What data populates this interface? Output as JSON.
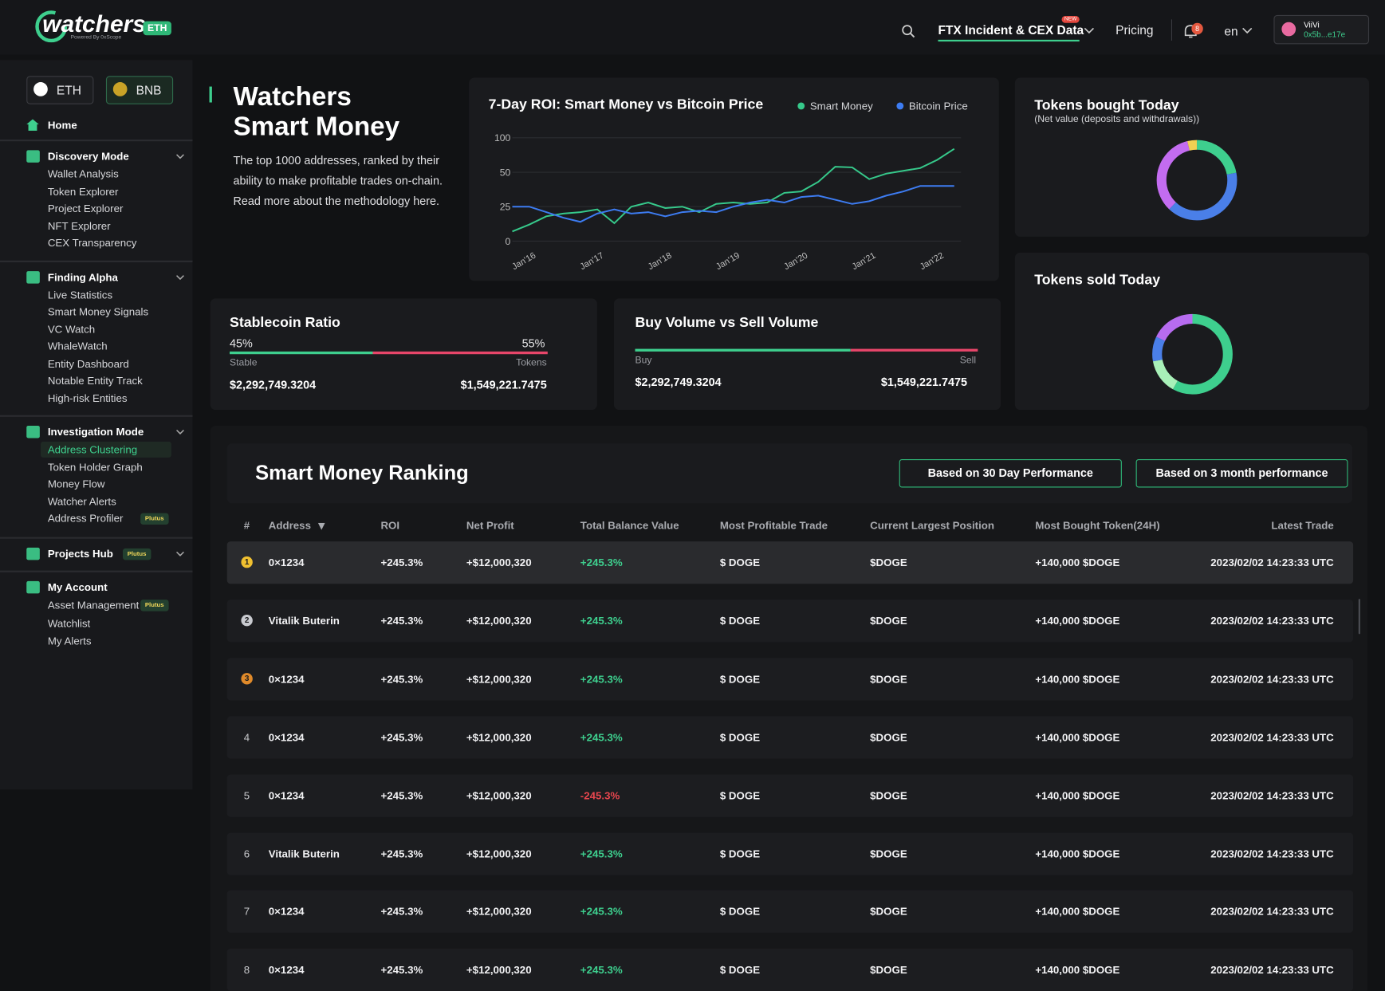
{
  "header": {
    "logo": "watchers",
    "logo_badge": "ETH",
    "tagline": "Powered By 0xScope",
    "nav": [
      {
        "label": "FTX Incident & CEX Data",
        "badge": "NEW"
      },
      {
        "label": "Pricing"
      }
    ],
    "notifications": "8",
    "language": "en",
    "user": {
      "name": "ViiVi",
      "address": "0x5b...e17e"
    }
  },
  "sidebar": {
    "chains": [
      "ETH",
      "BNB"
    ],
    "home": "Home",
    "sections": [
      {
        "title": "Discovery Mode",
        "items": [
          {
            "label": "Wallet Analysis"
          },
          {
            "label": "Token Explorer"
          },
          {
            "label": "Project Explorer"
          },
          {
            "label": "NFT Explorer"
          },
          {
            "label": "CEX Transparency"
          }
        ]
      },
      {
        "title": "Finding Alpha",
        "items": [
          {
            "label": "Live Statistics"
          },
          {
            "label": "Smart Money Signals"
          },
          {
            "label": "VC Watch"
          },
          {
            "label": "WhaleWatch"
          },
          {
            "label": "Entity Dashboard"
          },
          {
            "label": "Notable Entity Track"
          },
          {
            "label": "High-risk Entities"
          }
        ]
      },
      {
        "title": "Investigation Mode",
        "items": [
          {
            "label": "Address Clustering",
            "active": true
          },
          {
            "label": "Token Holder Graph"
          },
          {
            "label": "Money Flow"
          },
          {
            "label": "Watcher Alerts"
          },
          {
            "label": "Address Profiler",
            "badge": "Plutus"
          }
        ]
      },
      {
        "title": "Projects Hub",
        "badge": "Plutus",
        "items": []
      },
      {
        "title": "My Account",
        "items": [
          {
            "label": "Asset Management",
            "badge": "Plutus"
          },
          {
            "label": "Watchlist"
          },
          {
            "label": "My Alerts"
          }
        ]
      }
    ]
  },
  "hero": {
    "title_lines": [
      "Watchers",
      "Smart Money"
    ],
    "description": "The top 1000 addresses, ranked by their ability to make profitable trades on-chain. Read more about the methodology here."
  },
  "chart_data": [
    {
      "type": "line",
      "title": "7-Day ROI: Smart Money vs Bitcoin Price",
      "x": [
        2015.75,
        2016,
        2016.25,
        2016.5,
        2016.75,
        2017,
        2017.25,
        2017.5,
        2017.75,
        2018,
        2018.25,
        2018.5,
        2018.75,
        2019,
        2019.25,
        2019.5,
        2019.75,
        2020,
        2020.25,
        2020.5,
        2020.75,
        2021,
        2021.25,
        2021.5,
        2021.75,
        2022,
        2022.25
      ],
      "series": [
        {
          "name": "Smart Money",
          "color": "#36c98b",
          "values": [
            7,
            12,
            18,
            20,
            21,
            23,
            13,
            25,
            28,
            24,
            25,
            21,
            27,
            28,
            27,
            28,
            35,
            36,
            43,
            58,
            57,
            45,
            49,
            52,
            56,
            68,
            84
          ]
        },
        {
          "name": "Bitcoin Price",
          "color": "#3d7cf2",
          "values": [
            25,
            25,
            21,
            17,
            14,
            20,
            23,
            20,
            21,
            18,
            21,
            22,
            21,
            25,
            28,
            30,
            28,
            32,
            33,
            30,
            27,
            29,
            33,
            36,
            40,
            40,
            40
          ]
        }
      ],
      "xlim": [
        2015.75,
        2022.35
      ],
      "xticks": [
        {
          "value": 2016,
          "label": "Jan'16"
        },
        {
          "value": 2017,
          "label": "Jan'17"
        },
        {
          "value": 2018,
          "label": "Jan'18"
        },
        {
          "value": 2019,
          "label": "Jan'19"
        },
        {
          "value": 2020,
          "label": "Jan'20"
        },
        {
          "value": 2021,
          "label": "Jan'21"
        },
        {
          "value": 2022,
          "label": "Jan'22"
        }
      ],
      "ylim": [
        0,
        100
      ],
      "yticks": [
        0,
        25,
        50,
        100
      ],
      "grid": true
    },
    {
      "type": "pie",
      "title": "Tokens bought Today",
      "subtitle": "(Net value (deposits and withdrawals))",
      "values": [
        22,
        40,
        34,
        4
      ],
      "colors": [
        "#3ecf8e",
        "#4a7fe8",
        "#c36cf0",
        "#f0d052"
      ]
    },
    {
      "type": "pie",
      "title": "Tokens sold Today",
      "values": [
        58,
        14,
        10,
        18
      ],
      "colors": [
        "#3ecf8e",
        "#a8f0b8",
        "#4a7fe8",
        "#b76cf0"
      ]
    }
  ],
  "stablecoin": {
    "title": "Stablecoin Ratio",
    "values": [
      45,
      55
    ],
    "value_labels": [
      "45%",
      "55%"
    ],
    "labels": [
      "Stable",
      "Tokens"
    ],
    "amounts": [
      "$2,292,749.3204",
      "$1,549,221.7475"
    ]
  },
  "volume": {
    "title": "Buy Volume vs Sell Volume",
    "split": [
      63,
      37
    ],
    "labels": [
      "Buy",
      "Sell"
    ],
    "amounts": [
      "$2,292,749.3204",
      "$1,549,221.7475"
    ]
  },
  "ranking": {
    "title": "Smart Money Ranking",
    "buttons": [
      "Based on 30 Day Performance",
      "Based on 3 month performance"
    ],
    "columns": [
      "#",
      "Address",
      "ROI",
      "Net Profit",
      "Total Balance Value",
      "Most Profitable Trade",
      "Current Largest Position",
      "Most Bought Token(24H)",
      "Latest Trade"
    ],
    "rows": [
      [
        "1",
        "0×1234",
        "+245.3%",
        "+$12,000,320",
        "+245.3%",
        "$ DOGE",
        "$DOGE",
        "+140,000 $DOGE",
        "2023/02/02 14:23:33 UTC"
      ],
      [
        "2",
        "Vitalik Buterin",
        "+245.3%",
        "+$12,000,320",
        "+245.3%",
        "$ DOGE",
        "$DOGE",
        "+140,000 $DOGE",
        "2023/02/02 14:23:33 UTC"
      ],
      [
        "3",
        "0×1234",
        "+245.3%",
        "+$12,000,320",
        "+245.3%",
        "$ DOGE",
        "$DOGE",
        "+140,000 $DOGE",
        "2023/02/02 14:23:33 UTC"
      ],
      [
        "4",
        "0×1234",
        "+245.3%",
        "+$12,000,320",
        "+245.3%",
        "$ DOGE",
        "$DOGE",
        "+140,000 $DOGE",
        "2023/02/02 14:23:33 UTC"
      ],
      [
        "5",
        "0×1234",
        "+245.3%",
        "+$12,000,320",
        "-245.3%",
        "$ DOGE",
        "$DOGE",
        "+140,000 $DOGE",
        "2023/02/02 14:23:33 UTC"
      ],
      [
        "6",
        "Vitalik Buterin",
        "+245.3%",
        "+$12,000,320",
        "+245.3%",
        "$ DOGE",
        "$DOGE",
        "+140,000 $DOGE",
        "2023/02/02 14:23:33 UTC"
      ],
      [
        "7",
        "0×1234",
        "+245.3%",
        "+$12,000,320",
        "+245.3%",
        "$ DOGE",
        "$DOGE",
        "+140,000 $DOGE",
        "2023/02/02 14:23:33 UTC"
      ],
      [
        "8",
        "0×1234",
        "+245.3%",
        "+$12,000,320",
        "+245.3%",
        "$ DOGE",
        "$DOGE",
        "+140,000 $DOGE",
        "2023/02/02 14:23:33 UTC"
      ]
    ]
  }
}
